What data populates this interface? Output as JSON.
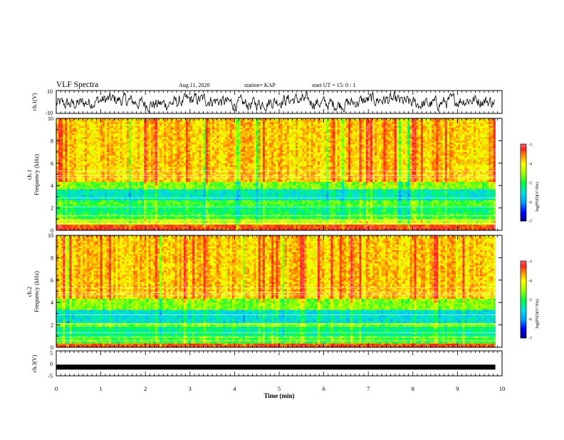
{
  "header": {
    "title": "VLF Spectra",
    "date": "Aug.11, 2020",
    "station": "station= KAP",
    "start": "start  UT =   15: 0  : 1"
  },
  "chart_data": [
    {
      "type": "line",
      "panel": "ch1-waveform",
      "ylabel": "ch.1(V)",
      "ylim": [
        -10,
        10
      ],
      "ytick_labels": [
        "10",
        "-10"
      ],
      "xlim": [
        0,
        10
      ],
      "series": [
        {
          "values_description_range": [
            -8,
            8
          ]
        }
      ]
    },
    {
      "type": "heatmap",
      "panel": "ch1-spectrogram",
      "ylabel_lines": [
        "ch.1",
        "Frequency  (kHz)"
      ],
      "ylim": [
        0,
        10
      ],
      "ytick_labels": [
        "0",
        "2",
        "4",
        "6",
        "8",
        "10"
      ],
      "xlim": [
        0,
        9.85
      ],
      "bands_khz": [
        {
          "from": 0,
          "to": 0.5,
          "level": -3.2
        },
        {
          "from": 0.5,
          "to": 1.0,
          "level": -4.3
        },
        {
          "from": 1.0,
          "to": 1.5,
          "level": -4.9
        },
        {
          "from": 1.5,
          "to": 2.2,
          "level": -5.1
        },
        {
          "from": 2.2,
          "to": 2.7,
          "level": -4.8
        },
        {
          "from": 2.7,
          "to": 3.6,
          "level": -5.4
        },
        {
          "from": 3.6,
          "to": 4.4,
          "level": -4.6
        },
        {
          "from": 4.4,
          "to": 10,
          "level": -3.8
        }
      ],
      "colorbar": {
        "label": "log(PSD)(V²/Hz)",
        "ticks": [
          "-3",
          "-4",
          "-5",
          "-6",
          "-7"
        ],
        "range": [
          -7,
          -3
        ]
      }
    },
    {
      "type": "heatmap",
      "panel": "ch2-spectrogram",
      "ylabel_lines": [
        "ch.2",
        "Frequency  (kHz)"
      ],
      "ylim": [
        0,
        10
      ],
      "ytick_labels": [
        "0",
        "2",
        "4",
        "6",
        "8",
        "10"
      ],
      "xlim": [
        0,
        9.85
      ],
      "bands_khz": [
        {
          "from": 0,
          "to": 0.4,
          "level": -3.3
        },
        {
          "from": 0.4,
          "to": 1.0,
          "level": -4.8
        },
        {
          "from": 1.0,
          "to": 1.9,
          "level": -5.2
        },
        {
          "from": 1.9,
          "to": 2.1,
          "level": -4.6
        },
        {
          "from": 2.1,
          "to": 3.3,
          "level": -5.5
        },
        {
          "from": 3.3,
          "to": 4.3,
          "level": -4.6
        },
        {
          "from": 4.3,
          "to": 10,
          "level": -3.8
        }
      ],
      "colorbar": {
        "label": "log(PSD)(V²/Hz)",
        "ticks": [
          "-3",
          "-4",
          "-5",
          "-6",
          "-7"
        ],
        "range": [
          -7,
          -3
        ]
      }
    },
    {
      "type": "line",
      "panel": "ch3-waveform",
      "ylabel": "ch.3(V)",
      "ylim": [
        -5,
        5
      ],
      "ytick_labels": [
        "5",
        "0",
        "-5"
      ],
      "xlim": [
        0,
        10
      ],
      "series": [
        {
          "level_v": -1.5
        }
      ]
    }
  ],
  "xaxis": {
    "label": "Time  (min)",
    "ticks": [
      "0",
      "1",
      "2",
      "3",
      "4",
      "5",
      "6",
      "7",
      "8",
      "9",
      "10"
    ],
    "range": [
      0,
      10
    ]
  },
  "colors": {
    "spectrum_ramp": [
      "#000080",
      "#0000ff",
      "#00a0ff",
      "#00e0e0",
      "#00ff40",
      "#a0ff00",
      "#ffff00",
      "#ff8000",
      "#ff2020",
      "#ffffff"
    ]
  }
}
